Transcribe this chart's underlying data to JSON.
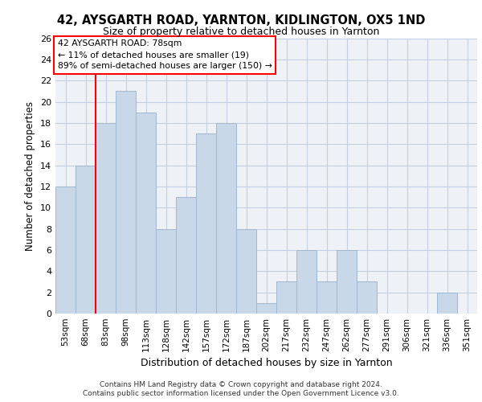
{
  "title1": "42, AYSGARTH ROAD, YARNTON, KIDLINGTON, OX5 1ND",
  "title2": "Size of property relative to detached houses in Yarnton",
  "xlabel": "Distribution of detached houses by size in Yarnton",
  "ylabel": "Number of detached properties",
  "categories": [
    "53sqm",
    "68sqm",
    "83sqm",
    "98sqm",
    "113sqm",
    "128sqm",
    "142sqm",
    "157sqm",
    "172sqm",
    "187sqm",
    "202sqm",
    "217sqm",
    "232sqm",
    "247sqm",
    "262sqm",
    "277sqm",
    "291sqm",
    "306sqm",
    "321sqm",
    "336sqm",
    "351sqm"
  ],
  "values": [
    12,
    14,
    18,
    21,
    19,
    8,
    11,
    17,
    18,
    8,
    1,
    3,
    6,
    3,
    6,
    3,
    0,
    0,
    0,
    2,
    0
  ],
  "bar_color": "#c8d8e8",
  "bar_edge_color": "#a0b8d0",
  "ylim": [
    0,
    26
  ],
  "yticks": [
    0,
    2,
    4,
    6,
    8,
    10,
    12,
    14,
    16,
    18,
    20,
    22,
    24,
    26
  ],
  "annotation_title": "42 AYSGARTH ROAD: 78sqm",
  "annotation_line1": "← 11% of detached houses are smaller (19)",
  "annotation_line2": "89% of semi-detached houses are larger (150) →",
  "vline_x": 1.5,
  "footer1": "Contains HM Land Registry data © Crown copyright and database right 2024.",
  "footer2": "Contains public sector information licensed under the Open Government Licence v3.0.",
  "bg_color": "#eef2f7",
  "grid_color": "#c5cfe0"
}
